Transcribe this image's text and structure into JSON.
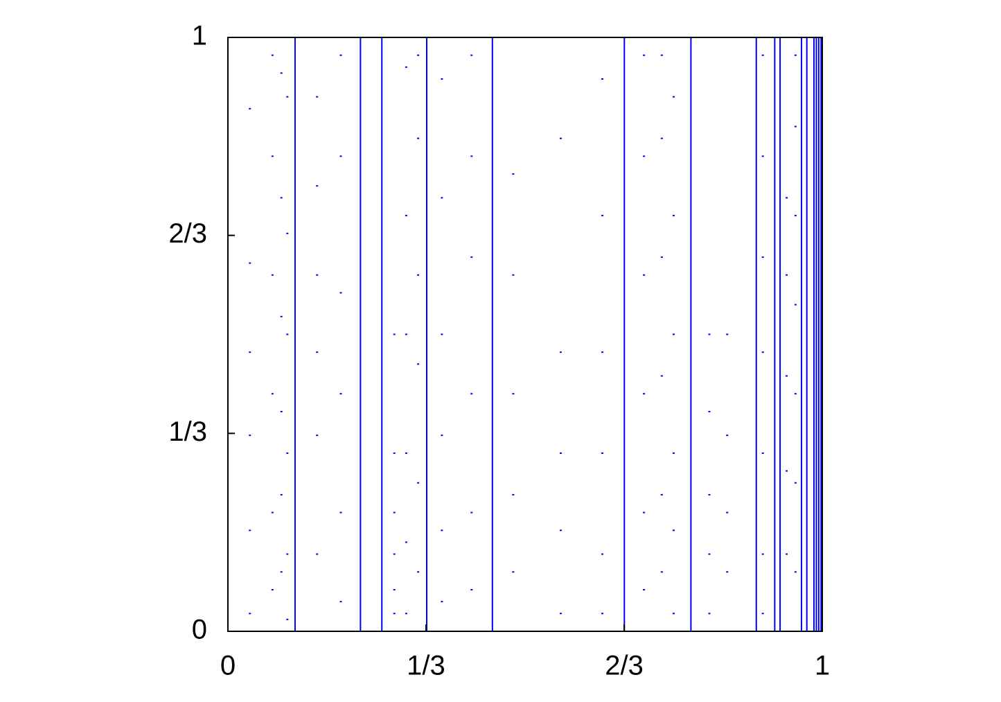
{
  "chart_data": {
    "type": "scatter",
    "color": "#0000ff",
    "xlim": [
      0,
      1
    ],
    "ylim": [
      0,
      1
    ],
    "xticks": [
      0,
      {
        "value": 0.3333,
        "label": "1/3"
      },
      {
        "value": 0.6667,
        "label": "2/3"
      },
      1
    ],
    "yticks": [
      0,
      {
        "value": 0.3333,
        "label": "1/3"
      },
      {
        "value": 0.6667,
        "label": "2/3"
      },
      1
    ],
    "lines_x": [
      0.113,
      0.223,
      0.259,
      0.3345,
      0.445,
      0.667,
      0.779,
      0.889,
      0.92,
      0.929,
      0.965,
      0.974,
      0.986,
      0.99,
      0.994,
      0.998
    ],
    "columns": [
      {
        "x": 0.037,
        "values": [
          0.88,
          0.62,
          0.47,
          0.33,
          0.17,
          0.03
        ]
      },
      {
        "x": 0.075,
        "values": [
          0.97,
          0.8,
          0.6,
          0.4,
          0.2,
          0.07
        ]
      },
      {
        "x": 0.09,
        "values": [
          0.94,
          0.73,
          0.53,
          0.37,
          0.23,
          0.1
        ]
      },
      {
        "x": 0.1,
        "values": [
          0.9,
          0.67,
          0.5,
          0.3,
          0.13,
          0.02
        ]
      },
      {
        "x": 0.15,
        "values": [
          0.9,
          0.75,
          0.6,
          0.47,
          0.33,
          0.13
        ]
      },
      {
        "x": 0.19,
        "values": [
          0.97,
          0.8,
          0.57,
          0.4,
          0.2,
          0.05
        ]
      },
      {
        "x": 0.28,
        "values": [
          0.5,
          0.3,
          0.2,
          0.13,
          0.07,
          0.03
        ]
      },
      {
        "x": 0.3,
        "values": [
          0.95,
          0.7,
          0.5,
          0.3,
          0.15,
          0.03
        ]
      },
      {
        "x": 0.32,
        "values": [
          0.97,
          0.83,
          0.6,
          0.45,
          0.25,
          0.1
        ]
      },
      {
        "x": 0.36,
        "values": [
          0.93,
          0.73,
          0.5,
          0.33,
          0.17,
          0.05
        ]
      },
      {
        "x": 0.41,
        "values": [
          0.97,
          0.8,
          0.63,
          0.4,
          0.2,
          0.07
        ]
      },
      {
        "x": 0.48,
        "values": [
          0.77,
          0.6,
          0.4,
          0.23,
          0.1
        ]
      },
      {
        "x": 0.56,
        "values": [
          0.83,
          0.47,
          0.3,
          0.17,
          0.03
        ]
      },
      {
        "x": 0.63,
        "values": [
          0.93,
          0.7,
          0.47,
          0.3,
          0.13,
          0.03
        ]
      },
      {
        "x": 0.7,
        "values": [
          0.97,
          0.8,
          0.6,
          0.4,
          0.2,
          0.07
        ]
      },
      {
        "x": 0.73,
        "values": [
          0.97,
          0.83,
          0.63,
          0.43,
          0.23,
          0.1
        ]
      },
      {
        "x": 0.75,
        "values": [
          0.9,
          0.7,
          0.5,
          0.3,
          0.17,
          0.03
        ]
      },
      {
        "x": 0.81,
        "values": [
          0.5,
          0.37,
          0.23,
          0.13,
          0.03
        ]
      },
      {
        "x": 0.84,
        "values": [
          0.5,
          0.33,
          0.2,
          0.1
        ]
      },
      {
        "x": 0.9,
        "values": [
          0.97,
          0.8,
          0.63,
          0.47,
          0.3,
          0.13,
          0.03
        ]
      },
      {
        "x": 0.94,
        "values": [
          0.73,
          0.6,
          0.43,
          0.27,
          0.13
        ]
      },
      {
        "x": 0.955,
        "values": [
          0.97,
          0.85,
          0.7,
          0.55,
          0.4,
          0.25,
          0.1
        ]
      }
    ]
  }
}
